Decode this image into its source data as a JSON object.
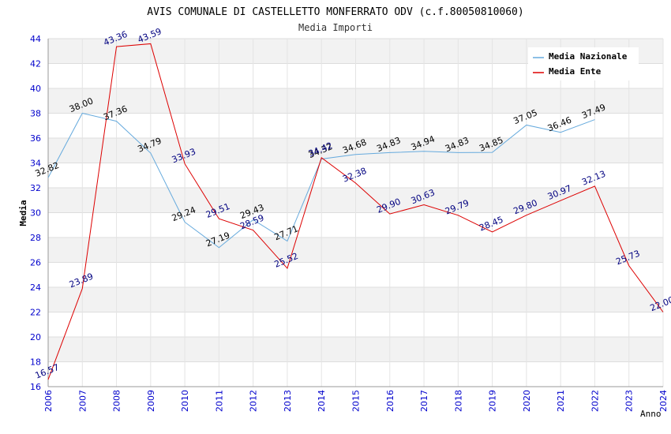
{
  "chart_data": {
    "type": "line",
    "title": "AVIS COMUNALE DI CASTELLETTO MONFERRATO ODV (c.f.80050810060)",
    "subtitle": "Media Importi",
    "xlabel": "Anno",
    "ylabel": "Media",
    "ylim": [
      16,
      44
    ],
    "yticks": [
      16,
      18,
      20,
      22,
      24,
      26,
      28,
      30,
      32,
      34,
      36,
      38,
      40,
      42,
      44
    ],
    "grid": true,
    "legend_position": "top-right",
    "x": [
      "2006",
      "2007",
      "2008",
      "2009",
      "2010",
      "2011",
      "2012",
      "2013",
      "2014",
      "2015",
      "2016",
      "2017",
      "2018",
      "2019",
      "2020",
      "2021",
      "2022",
      "2023",
      "2024"
    ],
    "series": [
      {
        "name": "Media Nazionale",
        "color": "#66aadd",
        "label_color": "#000000",
        "values": [
          32.82,
          38.0,
          37.36,
          34.79,
          29.24,
          27.19,
          29.43,
          27.71,
          34.32,
          34.68,
          34.83,
          34.94,
          34.83,
          34.85,
          37.05,
          36.46,
          37.49,
          null,
          null
        ],
        "labels": [
          "32.82",
          "38.00",
          "37.36",
          "34.79",
          "29.24",
          "27.19",
          "29.43",
          "27.71",
          "34.32",
          "34.68",
          "34.83",
          "34.94",
          "34.83",
          "34.85",
          "37.05",
          "36.46",
          "37.49",
          null,
          null
        ]
      },
      {
        "name": "Media Ente",
        "color": "#dd0000",
        "label_color": "#000080",
        "values": [
          16.57,
          23.89,
          43.36,
          43.59,
          33.93,
          29.51,
          28.59,
          25.52,
          34.42,
          32.38,
          29.9,
          30.63,
          29.79,
          28.45,
          29.8,
          30.97,
          32.13,
          25.73,
          22.0
        ],
        "labels": [
          "16.57",
          "23.89",
          "43.36",
          "43.59",
          "33.93",
          "29.51",
          "28.59",
          "25.52",
          "34.42",
          "32.38",
          "29.90",
          "30.63",
          "29.79",
          "28.45",
          "29.80",
          "30.97",
          "32.13",
          "25.73",
          "22.00"
        ]
      }
    ],
    "colors": {
      "axis_tick_text": "#0000cc",
      "band": "#f2f2f2",
      "gridline": "#dddddd"
    }
  }
}
